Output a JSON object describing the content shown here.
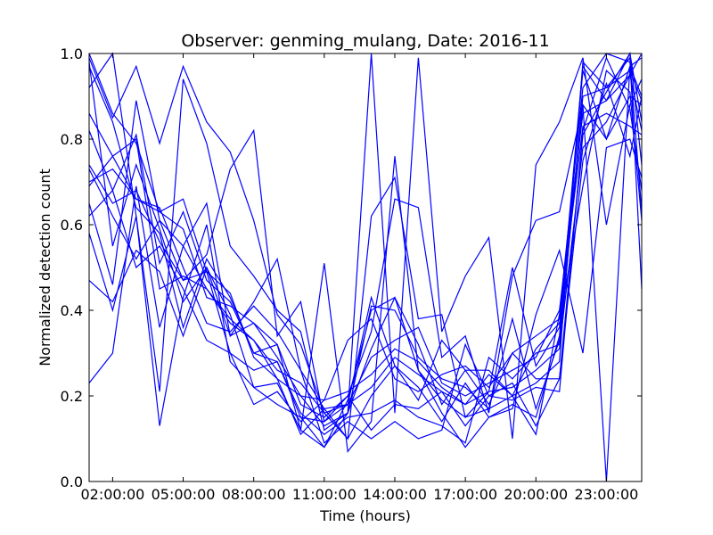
{
  "chart_data": {
    "type": "line",
    "title": "Observer: genming_mulang, Date: 2016-11",
    "xlabel": "Time (hours)",
    "ylabel": "Normalized detection count",
    "x_tick_labels": [
      "02:00:00",
      "05:00:00",
      "08:00:00",
      "11:00:00",
      "14:00:00",
      "17:00:00",
      "20:00:00",
      "23:00:00"
    ],
    "x_tick_hours": [
      2,
      5,
      8,
      11,
      14,
      17,
      20,
      23
    ],
    "y_tick_labels": [
      "0.0",
      "0.2",
      "0.4",
      "0.6",
      "0.8",
      "1.0"
    ],
    "xlim_hours": [
      1.0,
      24.5
    ],
    "ylim": [
      0,
      1.0
    ],
    "grid": false,
    "line_color": "#0000ff",
    "x_hours": [
      1.0,
      2.0,
      3.0,
      4.0,
      5.0,
      6.0,
      7.0,
      8.0,
      9.0,
      10.0,
      11.0,
      12.0,
      13.0,
      14.0,
      15.0,
      16.0,
      17.0,
      18.0,
      19.0,
      20.0,
      21.0,
      22.0,
      23.0,
      24.0,
      24.5
    ],
    "series": [
      {
        "values": [
          1.0,
          0.86,
          0.79,
          0.63,
          0.66,
          0.49,
          0.44,
          0.29,
          0.24,
          0.11,
          0.17,
          0.18,
          0.22,
          0.29,
          0.25,
          0.21,
          0.13,
          0.2,
          0.23,
          0.13,
          0.24,
          0.81,
          0.91,
          1.0,
          0.74
        ]
      },
      {
        "values": [
          0.98,
          0.55,
          0.74,
          0.59,
          0.42,
          0.5,
          0.34,
          0.37,
          0.32,
          0.12,
          0.08,
          0.19,
          0.4,
          0.43,
          0.26,
          0.19,
          0.15,
          0.17,
          0.2,
          0.11,
          0.39,
          0.92,
          1.0,
          0.98,
          0.63
        ]
      },
      {
        "values": [
          0.74,
          0.65,
          0.68,
          0.56,
          0.47,
          0.49,
          0.3,
          0.26,
          0.28,
          0.15,
          0.08,
          0.16,
          0.41,
          0.4,
          0.29,
          0.24,
          0.22,
          0.17,
          0.38,
          0.17,
          0.33,
          0.88,
          0.8,
          0.97,
          0.99
        ]
      },
      {
        "values": [
          0.69,
          0.76,
          0.8,
          0.45,
          0.48,
          0.45,
          0.37,
          0.33,
          0.24,
          0.2,
          0.13,
          0.16,
          0.31,
          0.43,
          0.32,
          0.18,
          0.26,
          0.26,
          0.2,
          0.31,
          0.37,
          0.69,
          0.96,
          0.91,
          0.61
        ]
      },
      {
        "values": [
          0.97,
          0.84,
          0.64,
          0.58,
          0.36,
          0.52,
          0.43,
          0.3,
          0.28,
          0.16,
          0.11,
          0.15,
          0.16,
          0.19,
          0.15,
          0.13,
          0.09,
          0.29,
          0.24,
          0.3,
          0.32,
          0.9,
          0.92,
          0.99,
          0.45
        ]
      },
      {
        "values": [
          0.7,
          0.73,
          0.66,
          0.64,
          0.5,
          0.37,
          0.35,
          0.41,
          0.35,
          0.26,
          0.17,
          0.1,
          0.2,
          0.27,
          0.22,
          0.14,
          0.23,
          0.15,
          0.18,
          0.15,
          0.34,
          0.96,
          0.8,
          0.9,
          0.88
        ]
      },
      {
        "values": [
          0.62,
          0.68,
          0.5,
          0.55,
          0.45,
          0.33,
          0.3,
          0.18,
          0.21,
          0.14,
          0.19,
          0.33,
          0.38,
          0.24,
          0.21,
          0.25,
          0.27,
          0.22,
          0.3,
          0.34,
          0.38,
          0.83,
          0.86,
          0.83,
          0.81
        ]
      },
      {
        "values": [
          0.47,
          0.42,
          0.54,
          0.49,
          0.34,
          0.5,
          0.39,
          0.22,
          0.18,
          0.15,
          0.14,
          0.18,
          0.43,
          0.27,
          0.19,
          0.33,
          0.26,
          0.18,
          0.3,
          0.24,
          0.24,
          0.75,
          0.93,
          0.76,
          0.9
        ]
      },
      {
        "values": [
          0.82,
          0.68,
          0.81,
          0.51,
          0.63,
          0.47,
          0.42,
          0.3,
          0.32,
          0.18,
          0.15,
          0.2,
          0.12,
          0.18,
          0.17,
          0.21,
          0.18,
          0.25,
          0.2,
          0.23,
          0.28,
          0.98,
          0.92,
          0.96,
          0.89
        ]
      },
      {
        "values": [
          0.73,
          0.62,
          0.52,
          0.61,
          0.55,
          0.45,
          0.38,
          0.33,
          0.26,
          0.23,
          0.16,
          0.18,
          0.29,
          0.33,
          0.36,
          0.23,
          0.2,
          0.23,
          0.26,
          0.29,
          0.4,
          0.86,
          0.89,
          1.0,
          0.84
        ]
      },
      {
        "values": [
          0.86,
          0.76,
          0.66,
          0.63,
          0.59,
          0.43,
          0.41,
          0.37,
          0.29,
          0.2,
          0.19,
          0.21,
          0.25,
          0.31,
          0.28,
          0.22,
          0.18,
          0.21,
          0.22,
          0.26,
          0.31,
          0.78,
          0.84,
          0.95,
          0.82
        ]
      },
      {
        "values": [
          0.23,
          0.3,
          0.69,
          0.36,
          0.55,
          0.65,
          0.34,
          0.42,
          0.52,
          0.26,
          0.09,
          0.14,
          0.1,
          0.14,
          0.1,
          0.12,
          0.32,
          0.2,
          0.19,
          0.22,
          0.21,
          0.82,
          0.99,
          0.87,
          0.68
        ]
      },
      {
        "values": [
          0.58,
          0.4,
          0.62,
          0.13,
          0.43,
          0.6,
          0.28,
          0.22,
          0.23,
          0.12,
          0.51,
          0.07,
          0.14,
          0.76,
          0.26,
          0.16,
          0.08,
          0.15,
          0.17,
          0.39,
          0.54,
          0.3,
          0.78,
          0.8,
          0.71
        ]
      },
      {
        "values": [
          0.99,
          0.85,
          0.97,
          0.79,
          0.97,
          0.84,
          0.77,
          0.61,
          0.39,
          0.32,
          0.16,
          0.1,
          0.62,
          0.71,
          0.38,
          0.39,
          0.15,
          0.21,
          0.5,
          0.27,
          0.36,
          0.97,
          0.89,
          0.95,
          1.0
        ]
      },
      {
        "values": [
          0.92,
          1.0,
          0.62,
          0.21,
          0.94,
          0.79,
          0.55,
          0.48,
          0.4,
          0.35,
          0.12,
          0.16,
          1.0,
          0.16,
          0.99,
          0.35,
          0.48,
          0.57,
          0.1,
          0.74,
          0.84,
          0.99,
          0.6,
          0.88,
          0.94
        ]
      },
      {
        "values": [
          0.65,
          0.46,
          0.89,
          0.61,
          0.47,
          0.53,
          0.73,
          0.82,
          0.34,
          0.42,
          0.14,
          0.2,
          0.35,
          0.66,
          0.64,
          0.29,
          0.34,
          0.16,
          0.48,
          0.61,
          0.63,
          0.88,
          0.0,
          0.97,
          0.9
        ]
      }
    ]
  }
}
